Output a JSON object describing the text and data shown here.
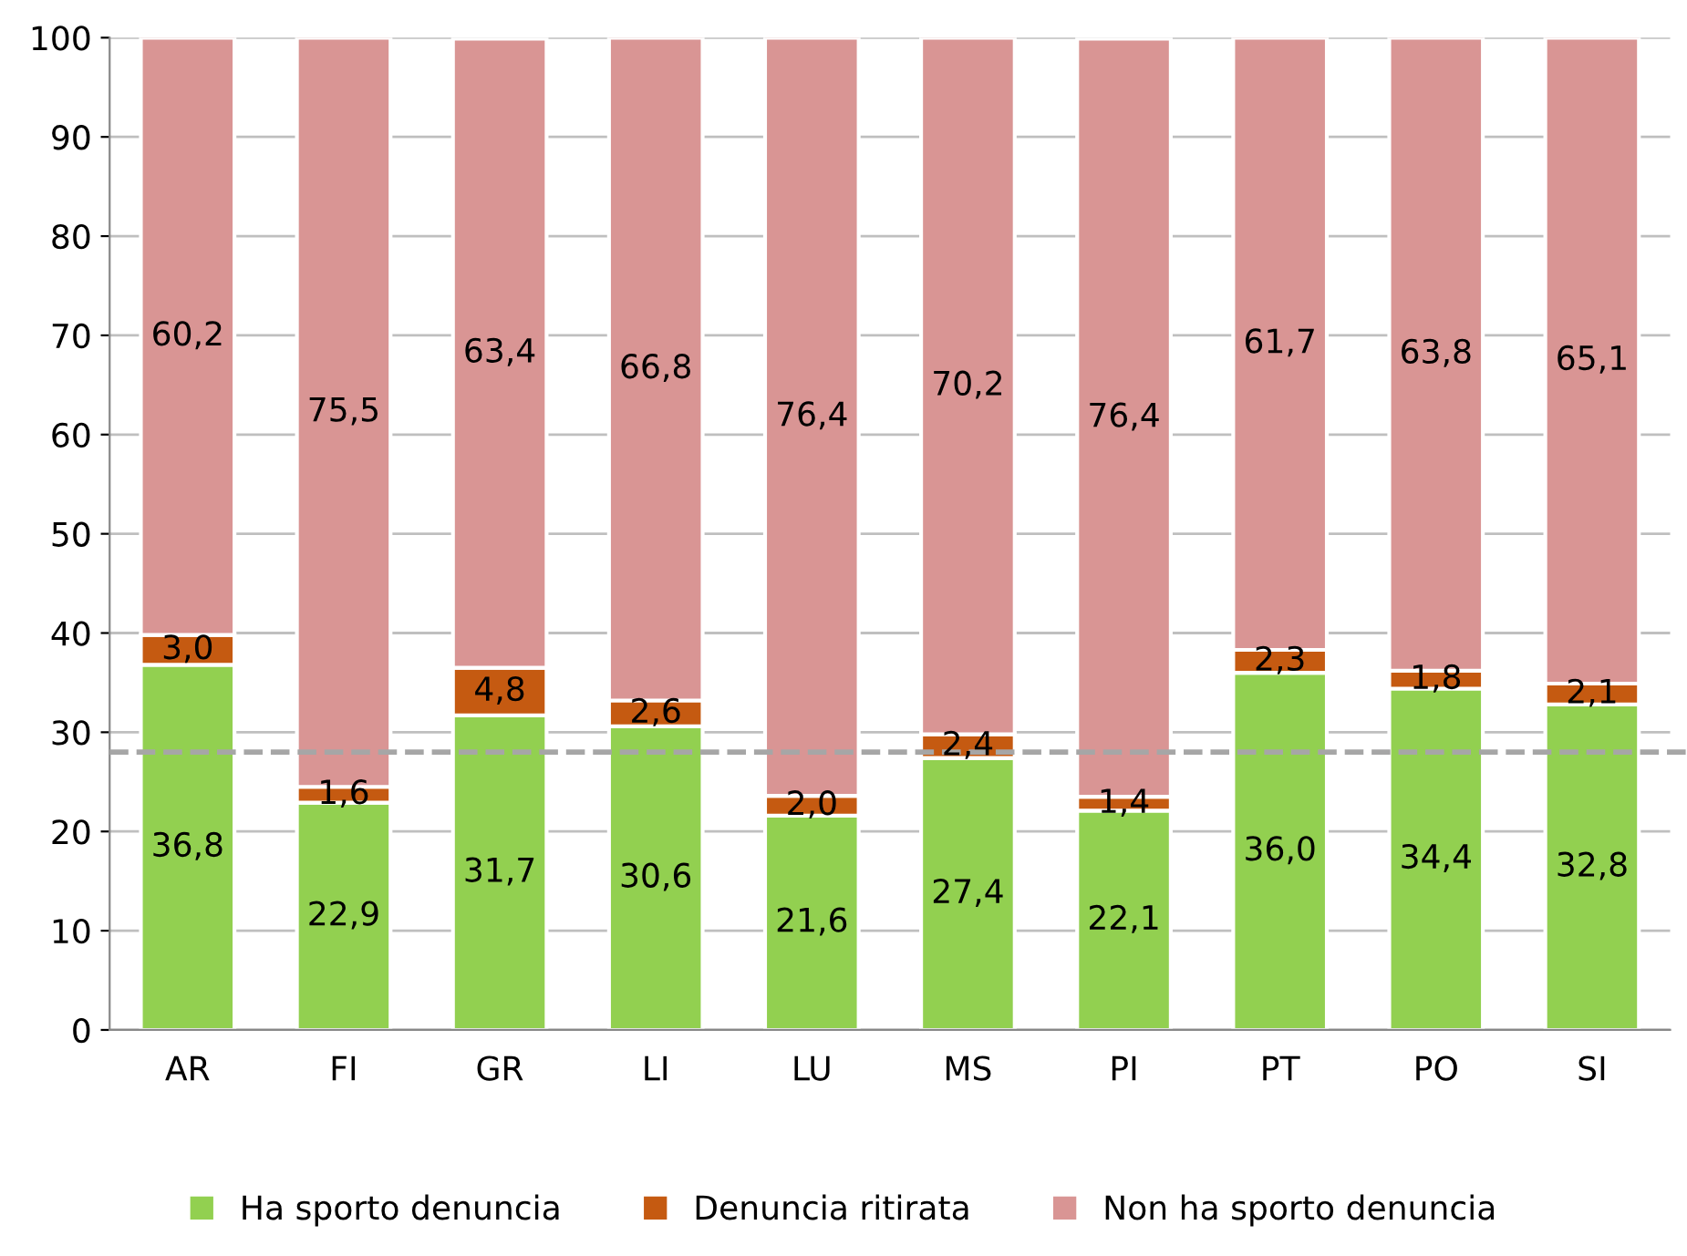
{
  "chart_data": {
    "type": "bar",
    "stacked": true,
    "categories": [
      "AR",
      "FI",
      "GR",
      "LI",
      "LU",
      "MS",
      "PI",
      "PT",
      "PO",
      "SI"
    ],
    "series": [
      {
        "name": "Ha sporto denuncia",
        "color": "#92d050",
        "values": [
          36.8,
          22.9,
          31.7,
          30.6,
          21.6,
          27.4,
          22.1,
          36.0,
          34.4,
          32.8
        ],
        "value_labels": [
          "36,8",
          "22,9",
          "31,7",
          "30,6",
          "21,6",
          "27,4",
          "22,1",
          "36,0",
          "34,4",
          "32,8"
        ]
      },
      {
        "name": "Denuncia ritirata",
        "color": "#c55a11",
        "values": [
          3.0,
          1.6,
          4.8,
          2.6,
          2.0,
          2.4,
          1.4,
          2.3,
          1.8,
          2.1
        ],
        "value_labels": [
          "3,0",
          "1,6",
          "4,8",
          "2,6",
          "2,0",
          "2,4",
          "1,4",
          "2,3",
          "1,8",
          "2,1"
        ]
      },
      {
        "name": "Non ha sporto denuncia",
        "color": "#d99594",
        "values": [
          60.2,
          75.5,
          63.4,
          66.8,
          76.4,
          70.2,
          76.4,
          61.7,
          63.8,
          65.1
        ],
        "value_labels": [
          "60,2",
          "75,5",
          "63,4",
          "66,8",
          "76,4",
          "70,2",
          "76,4",
          "61,7",
          "63,8",
          "65,1"
        ]
      }
    ],
    "ylim": [
      0,
      100
    ],
    "yticks": [
      0,
      10,
      20,
      30,
      40,
      50,
      60,
      70,
      80,
      90,
      100
    ],
    "grid": "y",
    "legend": "bottom",
    "ref_lines": [
      {
        "axis": "y",
        "value": 28,
        "color": "#a6a6a6",
        "line_style": "dashed"
      }
    ]
  }
}
